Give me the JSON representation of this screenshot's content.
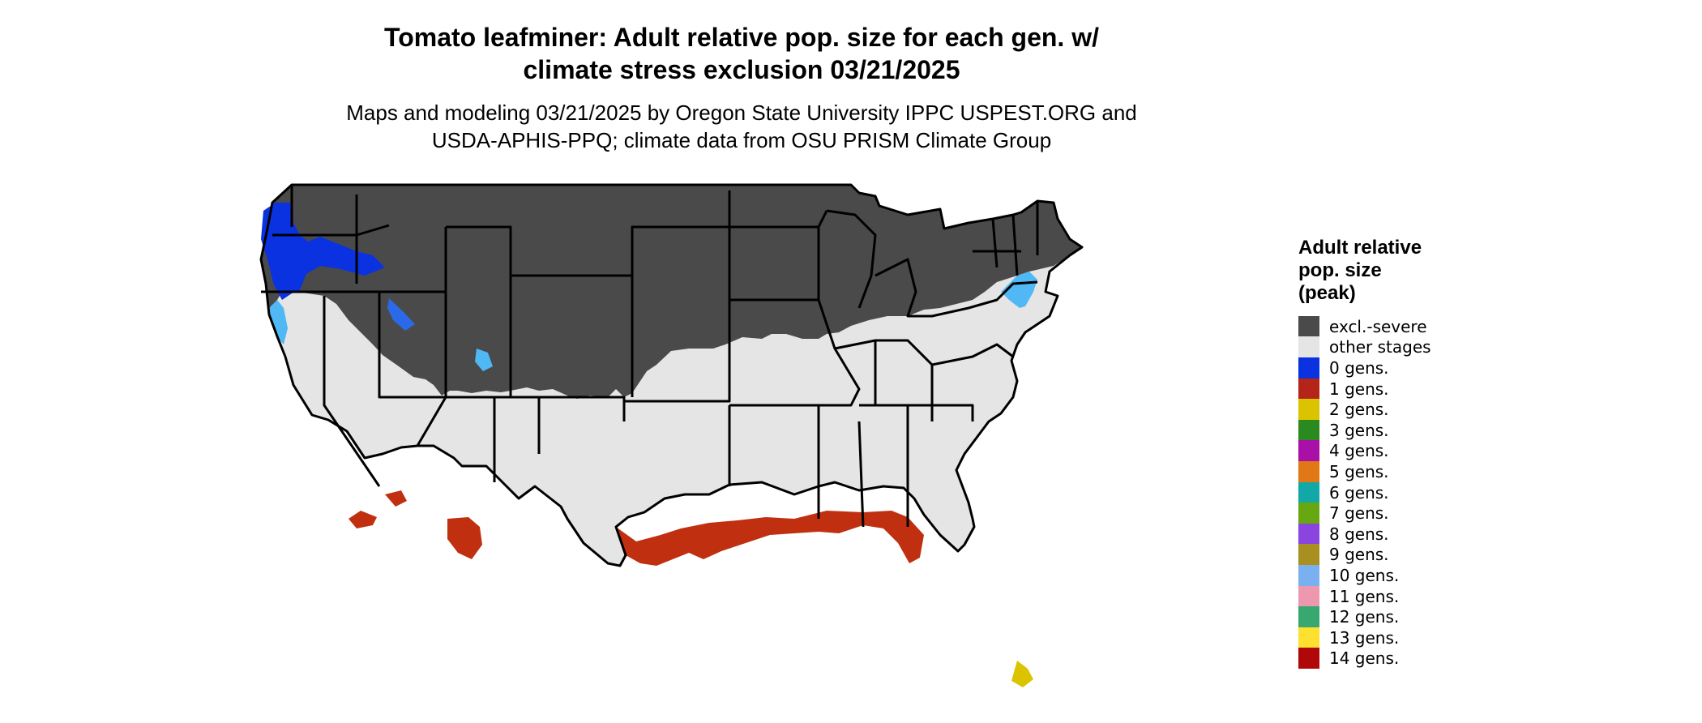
{
  "title_line1": "Tomato leafminer: Adult relative pop. size for each gen. w/",
  "title_line2": "climate stress exclusion 03/21/2025",
  "subtitle_line1": "Maps and modeling 03/21/2025 by Oregon State University IPPC USPEST.ORG and",
  "subtitle_line2": "USDA-APHIS-PPQ; climate data from OSU PRISM Climate Group",
  "legend": {
    "title_lines": [
      "Adult relative",
      "pop. size",
      "(peak)"
    ],
    "items": [
      {
        "label": "excl.-severe",
        "color": "#4a4a4a"
      },
      {
        "label": "other stages",
        "color": "#e5e5e5"
      },
      {
        "label": "0 gens.",
        "color": "#0a32e0"
      },
      {
        "label": "1 gens.",
        "color": "#b52418"
      },
      {
        "label": "2 gens.",
        "color": "#dcc300"
      },
      {
        "label": "3 gens.",
        "color": "#2b8a1f"
      },
      {
        "label": "4 gens.",
        "color": "#a810a8"
      },
      {
        "label": "5 gens.",
        "color": "#e07815"
      },
      {
        "label": "6 gens.",
        "color": "#12a8a8"
      },
      {
        "label": "7 gens.",
        "color": "#67a812"
      },
      {
        "label": "8 gens.",
        "color": "#8a44e0"
      },
      {
        "label": "9 gens.",
        "color": "#a88f20"
      },
      {
        "label": "10 gens.",
        "color": "#78b0f0"
      },
      {
        "label": "11 gens.",
        "color": "#ee98b0"
      },
      {
        "label": "12 gens.",
        "color": "#38a870"
      },
      {
        "label": "13 gens.",
        "color": "#fde030"
      },
      {
        "label": "14 gens.",
        "color": "#b00808"
      }
    ]
  }
}
